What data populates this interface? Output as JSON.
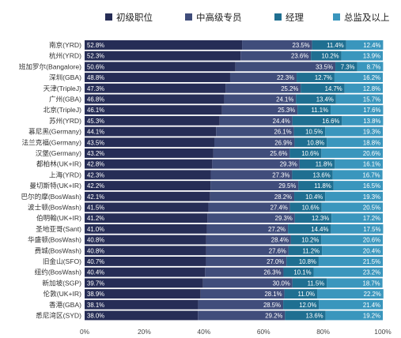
{
  "chart_data": {
    "type": "bar",
    "orientation": "horizontal",
    "stacked": true,
    "normalized": true,
    "legend_position": "top",
    "grid": false,
    "xlim": [
      0,
      100
    ],
    "x_ticks": [
      "0%",
      "20%",
      "40%",
      "60%",
      "80%",
      "100%"
    ],
    "categories": [
      "南京(YRD)",
      "杭州(YRD)",
      "班加罗尔(Bangalore)",
      "深圳(GBA)",
      "天津(TripleJ)",
      "广州(GBA)",
      "北京(TripleJ)",
      "苏州(YRD)",
      "慕尼黑(Germany)",
      "法兰克福(Germany)",
      "汉堡(Germany)",
      "都柏林(UK+IR)",
      "上海(YRD)",
      "曼切斯特(UK+IR)",
      "巴尔的摩(BosWash)",
      "波士顿(BosWash)",
      "伯明翰(UK+IR)",
      "圣地亚哥(Sant)",
      "华盛顿(BosWash)",
      "费城(BosWash)",
      "旧金山(SFO)",
      "纽约(BosWash)",
      "新加坡(SGP)",
      "伦敦(UK+IR)",
      "香港(GBA)",
      "悉尼湾区(SYD)"
    ],
    "series": [
      {
        "name": "初级职位",
        "color": "#262d56",
        "values": [
          52.8,
          52.3,
          50.6,
          48.8,
          47.3,
          46.8,
          46.1,
          45.3,
          44.1,
          43.5,
          43.2,
          42.8,
          42.3,
          42.2,
          42.1,
          41.5,
          41.2,
          41.0,
          40.8,
          40.8,
          40.7,
          40.4,
          39.7,
          38.9,
          38.1,
          38.0
        ],
        "labels": [
          "52.8%",
          "52.3%",
          "50.6%",
          "48.8%",
          "47.3%",
          "46.8%",
          "46.1%",
          "45.3%",
          "44.1%",
          "43.5%",
          "43.2%",
          "42.8%",
          "42.3%",
          "42.2%",
          "42.1%",
          "41.5%",
          "41.2%",
          "41.0%",
          "40.8%",
          "40.8%",
          "40.7%",
          "40.4%",
          "39.7%",
          "38.9%",
          "38.1%",
          "38.0%"
        ]
      },
      {
        "name": "中高级专员",
        "color": "#404d7b",
        "values": [
          23.5,
          23.6,
          33.5,
          22.3,
          25.2,
          24.1,
          25.3,
          24.4,
          26.1,
          26.9,
          25.6,
          29.3,
          27.3,
          29.5,
          28.2,
          27.4,
          29.3,
          27.2,
          28.4,
          27.6,
          27.0,
          26.3,
          30.0,
          28.1,
          28.5,
          29.2
        ],
        "labels": [
          "23.5%",
          "23.6%",
          "33.5%",
          "22.3%",
          "25.2%",
          "24.1%",
          "25.3%",
          "24.4%",
          "26.1%",
          "26.9%",
          "25.6%",
          "29.3%",
          "27.3%",
          "29.5%",
          "28.2%",
          "27.4%",
          "29.3%",
          "27.2%",
          "28.4%",
          "27.6%",
          "27.0%",
          "26.3%",
          "30.0%",
          "28.1%",
          "28.5%",
          "29.2%"
        ]
      },
      {
        "name": "经理",
        "color": "#1f6f91",
        "values": [
          11.4,
          10.2,
          7.3,
          12.7,
          14.7,
          13.4,
          11.1,
          16.6,
          10.5,
          10.8,
          10.6,
          11.8,
          13.6,
          11.8,
          10.4,
          10.6,
          12.3,
          14.4,
          10.2,
          11.2,
          10.8,
          10.1,
          11.5,
          11.0,
          12.0,
          13.6
        ],
        "labels": [
          "11.4%",
          "10.2%",
          "7.3%",
          "12.7%",
          "14.7%",
          "13.4%",
          "11.1%",
          "16.6%",
          "10.5%",
          "10.8%",
          "10.6%",
          "11.8%",
          "13.6%",
          "11.8%",
          "10.4%",
          "10.6%",
          "12.3%",
          "14.4%",
          "10.2%",
          "11.2%",
          "10.8%",
          "10.1%",
          "11.5%",
          "11.0%",
          "12.0%",
          "13.6%"
        ]
      },
      {
        "name": "总监及以上",
        "color": "#3a96bd",
        "values": [
          12.4,
          13.9,
          8.7,
          16.2,
          12.8,
          15.7,
          17.6,
          13.8,
          19.3,
          18.8,
          20.6,
          16.1,
          16.7,
          16.5,
          19.3,
          20.5,
          17.2,
          17.5,
          20.6,
          20.4,
          21.5,
          23.2,
          18.7,
          22.2,
          21.4,
          19.2
        ],
        "labels": [
          "12.4%",
          "13.9%",
          "8.7%",
          "16.2%",
          "12.8%",
          "15.7%",
          "17.6%",
          "13.8%",
          "19.3%",
          "18.8%",
          "20.6%",
          "16.1%",
          "16.7%",
          "16.5%",
          "19.3%",
          "20.5%",
          "17.2%",
          "17.5%",
          "20.6%",
          "20.4%",
          "21.5%",
          "23.2%",
          "18.7%",
          "22.2%",
          "21.4%",
          "19.2%"
        ]
      }
    ]
  }
}
